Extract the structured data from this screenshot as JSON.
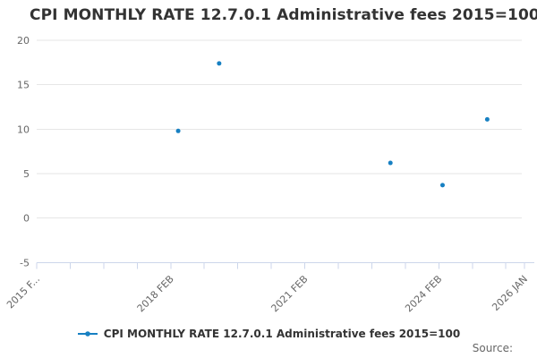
{
  "title": "CPI MONTHLY RATE 12.7.0.1 Administrative fees 2015=100",
  "legend": {
    "label": "CPI MONTHLY RATE 12.7.0.1 Administrative fees 2015=100",
    "marker": "line-dot-marker"
  },
  "source": {
    "label": "Source:"
  },
  "colors": {
    "series": "#1780c2",
    "grid": "#e6e6e6",
    "axis": "#ccd6eb",
    "title_text": "#333333",
    "axis_text": "#666666",
    "legend_text": "#333333",
    "source_text": "#666666",
    "background": "#ffffff"
  },
  "chart_data": {
    "type": "scatter",
    "title": "CPI MONTHLY RATE 12.7.0.1 Administrative fees 2015=100",
    "xlabel": "",
    "ylabel": "",
    "grid": "horizontal",
    "legend_position": "bottom-center",
    "x_axis": {
      "kind": "time-months",
      "start_label": "2015 FEB",
      "end_label": "2026 JAN",
      "total_months": 131,
      "tick_interval_months": 9,
      "label_rotation_deg": -45,
      "labels": [
        {
          "text": "2015 F...",
          "month": 0
        },
        {
          "text": "2018 FEB",
          "month": 36
        },
        {
          "text": "2021 FEB",
          "month": 72
        },
        {
          "text": "2024 FEB",
          "month": 108
        },
        {
          "text": "2026 JAN",
          "month": 131
        }
      ]
    },
    "y_axis": {
      "min": -5,
      "max": 20,
      "tick_interval": 5,
      "ticks": [
        20,
        15,
        10,
        5,
        0,
        -5
      ]
    },
    "series": [
      {
        "name": "CPI MONTHLY RATE 12.7.0.1 Administrative fees 2015=100",
        "points": [
          {
            "date": "2018 APR",
            "month": 38,
            "value": 9.8
          },
          {
            "date": "2019 MAR",
            "month": 49,
            "value": 17.4
          },
          {
            "date": "2023 JAN",
            "month": 95,
            "value": 6.2
          },
          {
            "date": "2024 MAR",
            "month": 109,
            "value": 3.7
          },
          {
            "date": "2025 MAR",
            "month": 121,
            "value": 11.1
          }
        ]
      }
    ]
  }
}
